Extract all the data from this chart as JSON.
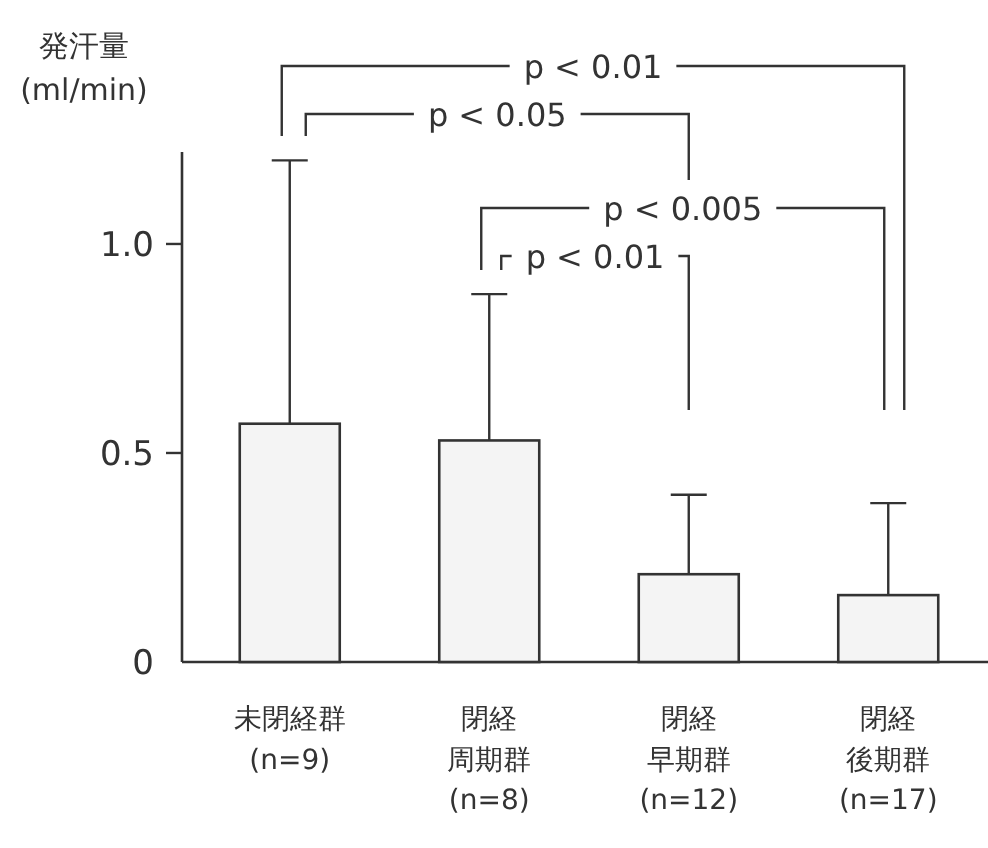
{
  "chart_data": {
    "type": "bar",
    "ylabel": "発汗量\n(ml/min)",
    "categories": [
      "未閉経群\n(n=9)",
      "閉経周期群\n(n=8)",
      "閉経早期群\n(n=12)",
      "閉経後期群\n(n=17)"
    ],
    "values": [
      0.57,
      0.53,
      0.21,
      0.16
    ],
    "errors": [
      [
        0.57,
        1.2
      ],
      [
        0.53,
        0.88
      ],
      [
        0.21,
        0.4
      ],
      [
        0.16,
        0.38
      ]
    ],
    "color": "#f4f4f4",
    "ylim": [
      0,
      1.22
    ],
    "yticks": [
      0,
      0.5,
      {
        "value": 1,
        "label": "1.0"
      }
    ],
    "annotations": [
      "p < 0.01",
      "p < 0.05",
      "p < 0.005",
      "p < 0.01"
    ]
  }
}
